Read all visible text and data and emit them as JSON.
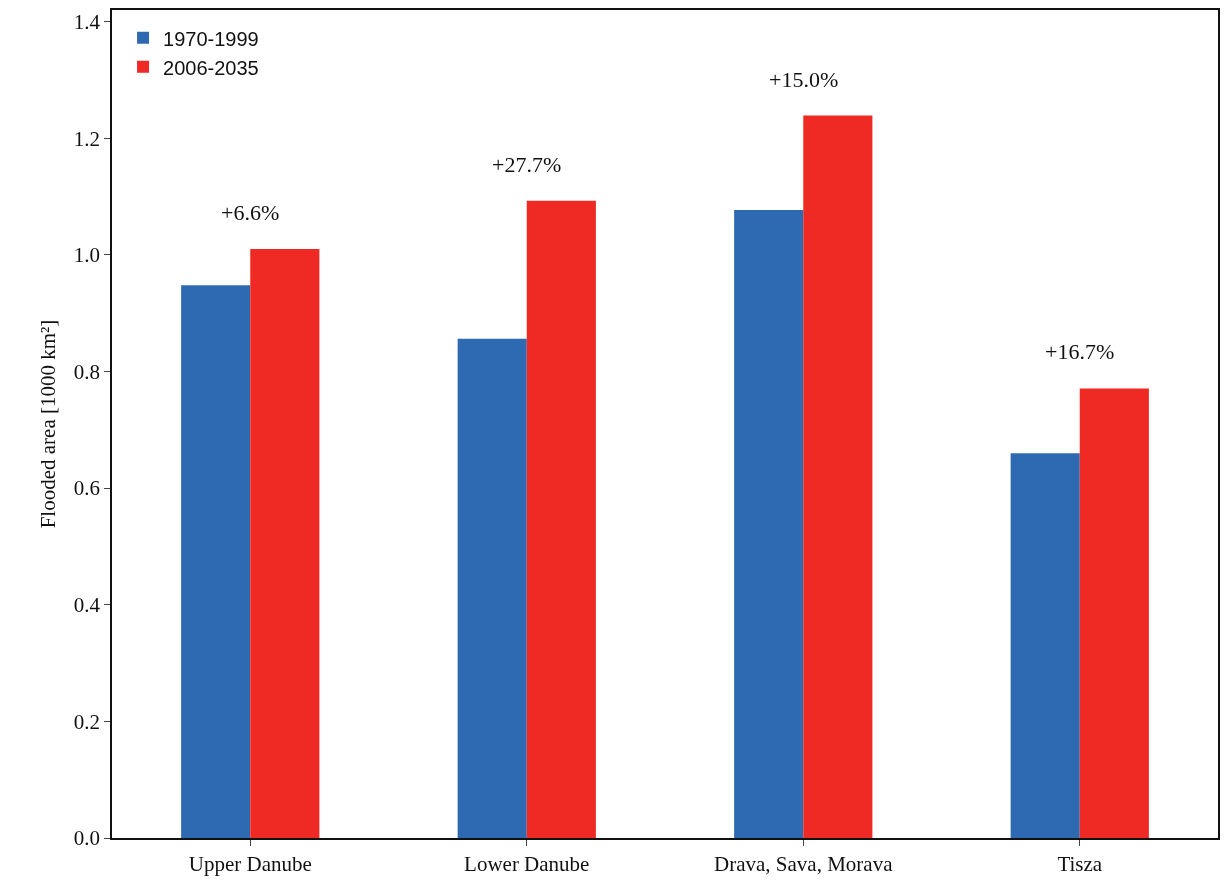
{
  "chart_data": {
    "type": "bar",
    "ylabel": "Flooded area [1000 km²]",
    "categories": [
      "Upper Danube",
      "Lower Danube",
      "Drava, Sava, Morava",
      "Tisza"
    ],
    "series": [
      {
        "name": "1970-1999",
        "color": "#2e6ab1",
        "values": [
          0.948,
          0.856,
          1.077,
          0.66
        ]
      },
      {
        "name": "2006-2035",
        "color": "#ef2923",
        "values": [
          1.01,
          1.093,
          1.239,
          0.771
        ]
      }
    ],
    "annotations": [
      {
        "text": "+6.6%",
        "x": "Upper Danube",
        "y": 1.01
      },
      {
        "text": "+27.7%",
        "x": "Lower Danube",
        "y": 1.093
      },
      {
        "text": "+15.0%",
        "x": "Drava, Sava, Morava",
        "y": 1.239
      },
      {
        "text": "+16.7%",
        "x": "Tisza",
        "y": 0.771
      }
    ],
    "ylim": [
      0,
      1.42
    ],
    "yticks": [
      {
        "value": 0,
        "label": "0.0"
      },
      {
        "value": 0.2,
        "label": "0.2"
      },
      {
        "value": 0.4,
        "label": "0.4"
      },
      {
        "value": 0.6,
        "label": "0.6"
      },
      {
        "value": 0.8,
        "label": "0.8"
      },
      {
        "value": 1.0,
        "label": "1.0"
      },
      {
        "value": 1.2,
        "label": "1.2"
      },
      {
        "value": 1.4,
        "label": "1.4"
      }
    ],
    "grid": false,
    "legend": "top left"
  }
}
